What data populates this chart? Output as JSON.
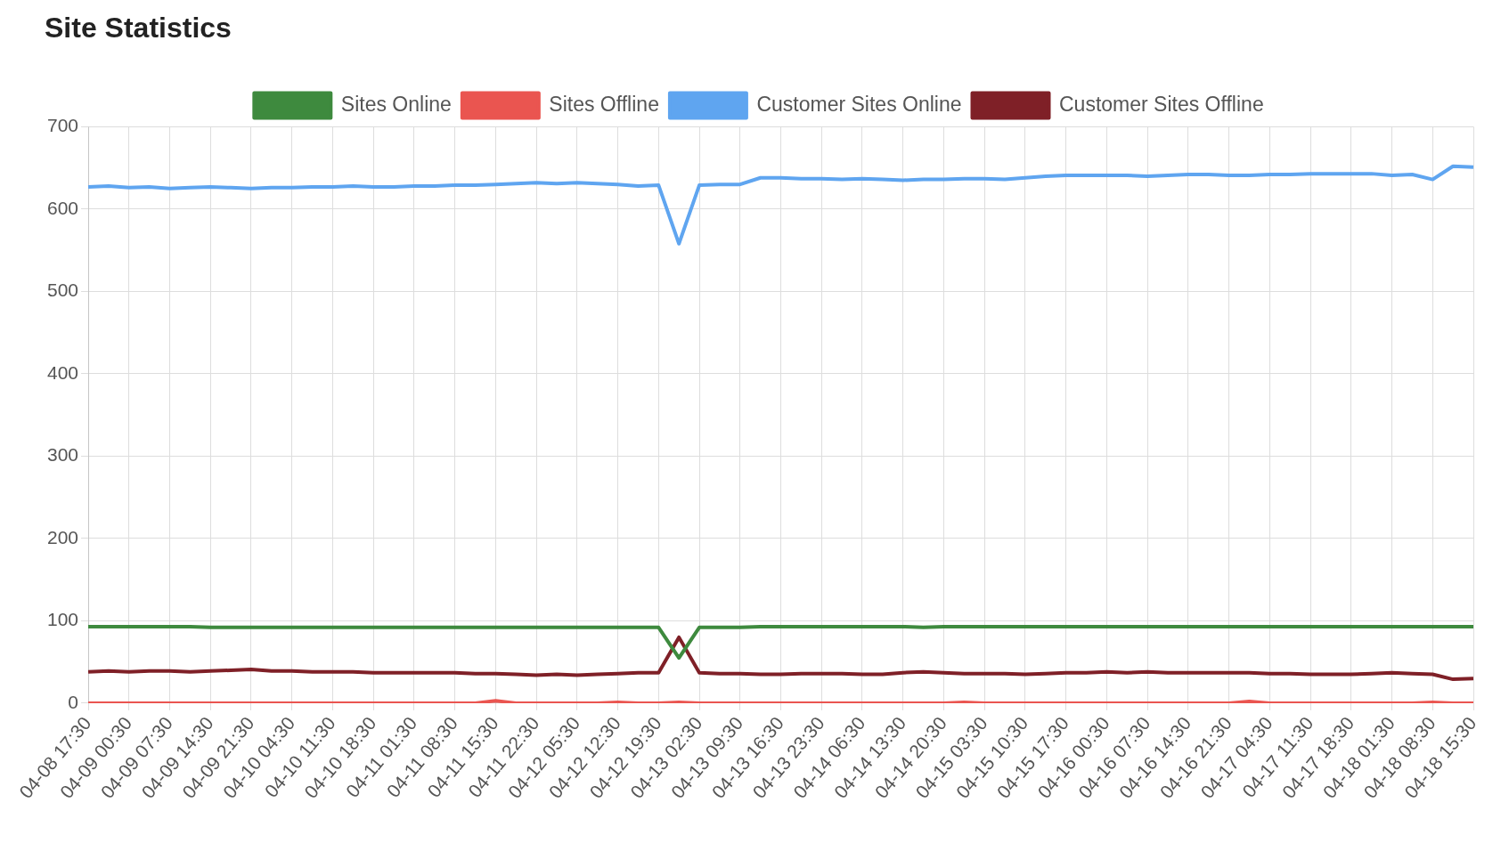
{
  "chart_data": {
    "type": "line",
    "title": "Site Statistics",
    "categories": [
      "04-08 17:30",
      null,
      "04-09 00:30",
      null,
      "04-09 07:30",
      null,
      "04-09 14:30",
      null,
      "04-09 21:30",
      null,
      "04-10 04:30",
      null,
      "04-10 11:30",
      null,
      "04-10 18:30",
      null,
      "04-11 01:30",
      null,
      "04-11 08:30",
      null,
      "04-11 15:30",
      null,
      "04-11 22:30",
      null,
      "04-12 05:30",
      null,
      "04-12 12:30",
      null,
      "04-12 19:30",
      null,
      "04-13 02:30",
      null,
      "04-13 09:30",
      null,
      "04-13 16:30",
      null,
      "04-13 23:30",
      null,
      "04-14 06:30",
      null,
      "04-14 13:30",
      null,
      "04-14 20:30",
      null,
      "04-15 03:30",
      null,
      "04-15 10:30",
      null,
      "04-15 17:30",
      null,
      "04-16 00:30",
      null,
      "04-16 07:30",
      null,
      "04-16 14:30",
      null,
      "04-16 21:30",
      null,
      "04-17 04:30",
      null,
      "04-17 11:30",
      null,
      "04-17 18:30",
      null,
      "04-18 01:30",
      null,
      "04-18 08:30",
      null,
      "04-18 15:30"
    ],
    "series": [
      {
        "name": "Sites Online",
        "color": "#3e8a3e",
        "values": [
          93,
          93,
          93,
          93,
          93,
          93,
          92,
          92,
          92,
          92,
          92,
          92,
          92,
          92,
          92,
          92,
          92,
          92,
          92,
          92,
          92,
          92,
          92,
          92,
          92,
          92,
          92,
          92,
          92,
          55,
          92,
          92,
          92,
          93,
          93,
          93,
          93,
          93,
          93,
          93,
          93,
          92,
          93,
          93,
          93,
          93,
          93,
          93,
          93,
          93,
          93,
          93,
          93,
          93,
          93,
          93,
          93,
          93,
          93,
          93,
          93,
          93,
          93,
          93,
          93,
          93,
          93,
          93,
          93
        ]
      },
      {
        "name": "Sites Offline",
        "color": "#ea5550",
        "values": [
          0,
          0,
          0,
          0,
          0,
          0,
          0,
          0,
          0,
          0,
          0,
          0,
          0,
          0,
          0,
          0,
          0,
          0,
          0,
          0,
          3,
          0,
          0,
          0,
          0,
          0,
          1,
          0,
          0,
          1,
          0,
          0,
          0,
          0,
          0,
          0,
          0,
          0,
          0,
          0,
          0,
          0,
          0,
          1,
          0,
          0,
          0,
          0,
          0,
          0,
          0,
          0,
          0,
          0,
          0,
          0,
          0,
          2,
          0,
          0,
          0,
          0,
          0,
          0,
          0,
          0,
          1,
          0,
          0
        ]
      },
      {
        "name": "Customer Sites Online",
        "color": "#5fa5f0",
        "values": [
          627,
          628,
          626,
          627,
          625,
          626,
          627,
          626,
          625,
          626,
          626,
          627,
          627,
          628,
          627,
          627,
          628,
          628,
          629,
          629,
          630,
          631,
          632,
          631,
          632,
          631,
          630,
          628,
          629,
          558,
          629,
          630,
          630,
          638,
          638,
          637,
          637,
          636,
          637,
          636,
          635,
          636,
          636,
          637,
          637,
          636,
          638,
          640,
          641,
          641,
          641,
          641,
          640,
          641,
          642,
          642,
          641,
          641,
          642,
          642,
          643,
          643,
          643,
          643,
          641,
          642,
          636,
          652,
          651
        ]
      },
      {
        "name": "Customer Sites Offline",
        "color": "#7f2027",
        "values": [
          38,
          39,
          38,
          39,
          39,
          38,
          39,
          40,
          41,
          39,
          39,
          38,
          38,
          38,
          37,
          37,
          37,
          37,
          37,
          36,
          36,
          35,
          34,
          35,
          34,
          35,
          36,
          37,
          37,
          80,
          37,
          36,
          36,
          35,
          35,
          36,
          36,
          36,
          35,
          35,
          37,
          38,
          37,
          36,
          36,
          36,
          35,
          36,
          37,
          37,
          38,
          37,
          38,
          37,
          37,
          37,
          37,
          37,
          36,
          36,
          35,
          35,
          35,
          36,
          37,
          36,
          35,
          29,
          30
        ]
      }
    ],
    "ylim": [
      0,
      700
    ],
    "yticks": [
      0,
      100,
      200,
      300,
      400,
      500,
      600,
      700
    ],
    "grid": true,
    "legend": "top",
    "marker": "none",
    "line_style": "solid"
  }
}
